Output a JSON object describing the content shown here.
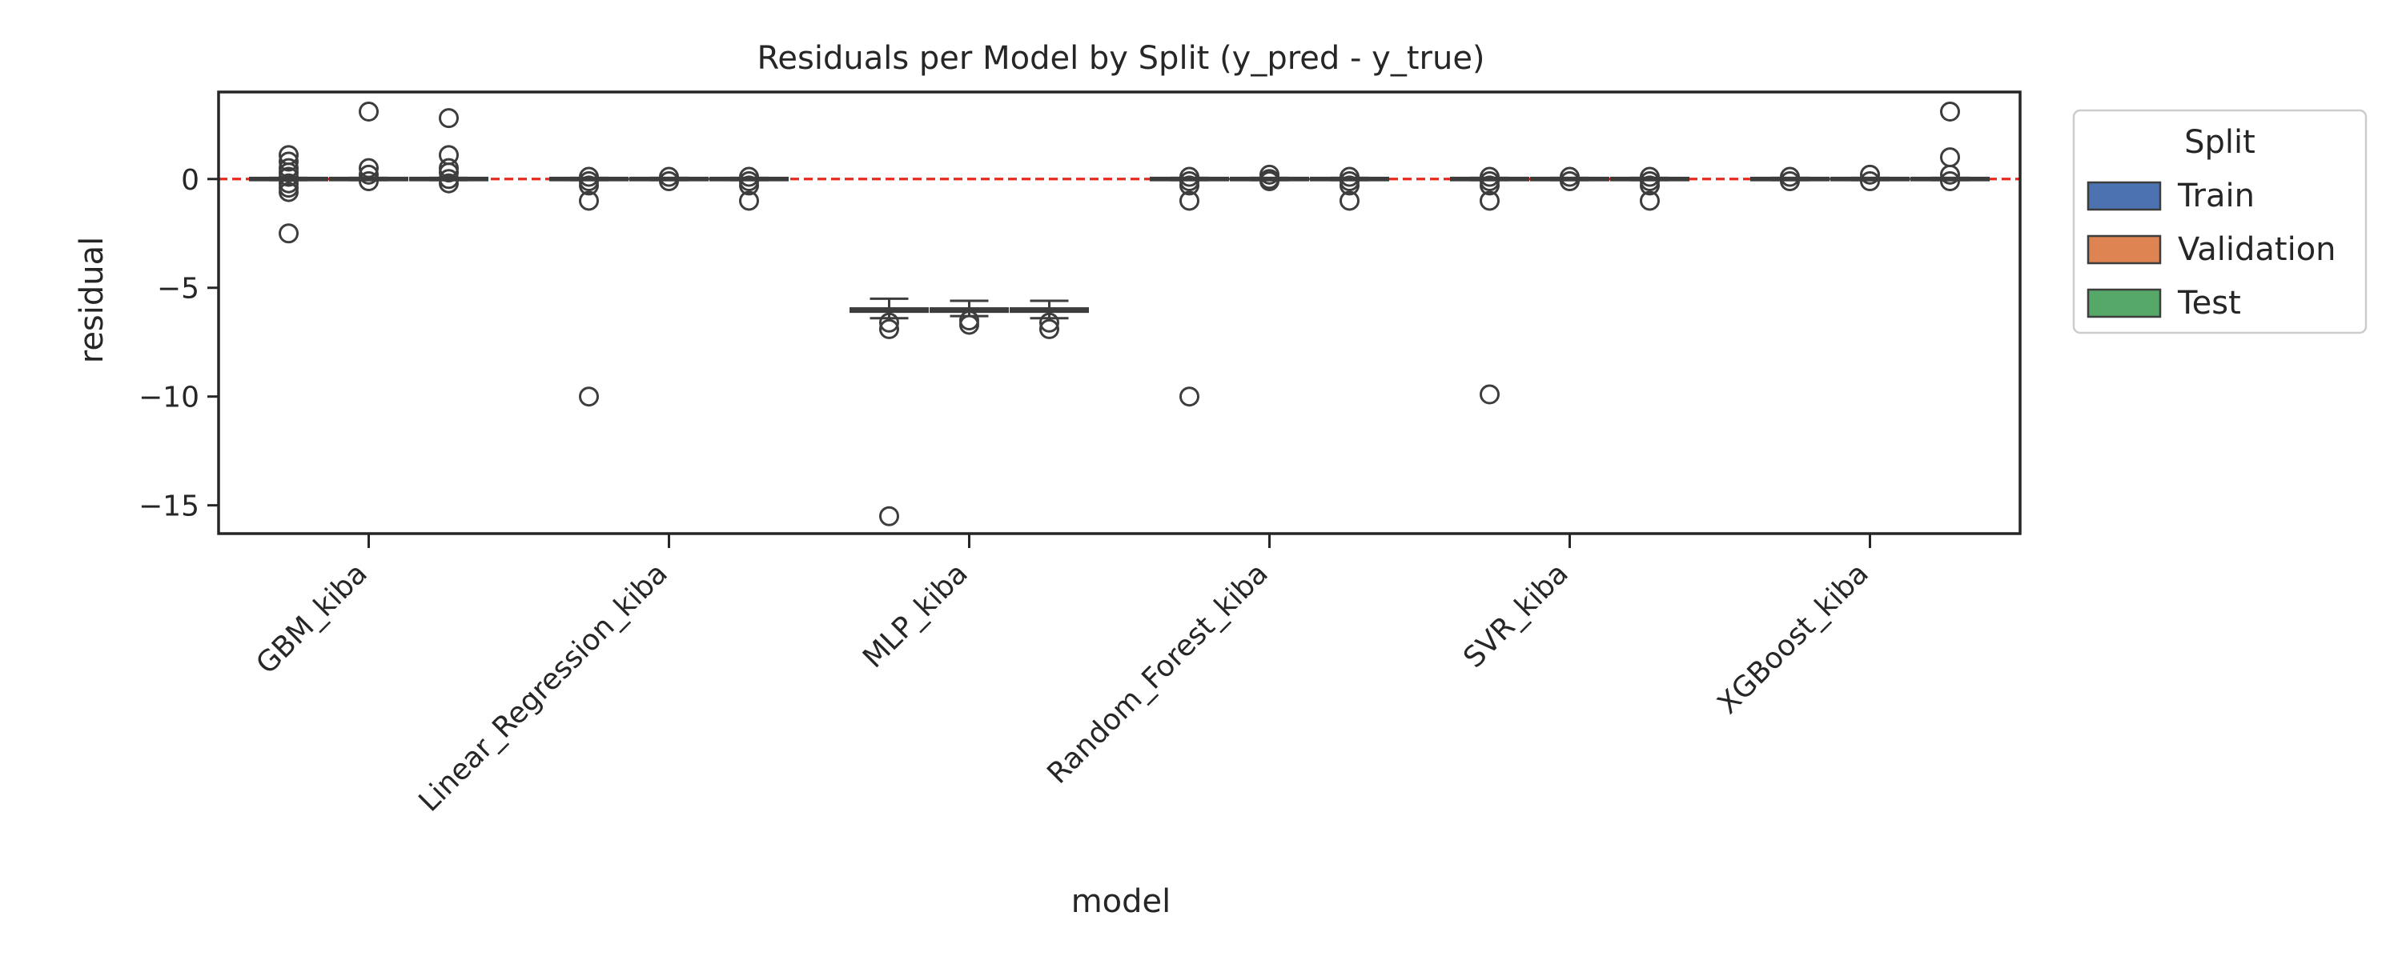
{
  "chart_data": {
    "type": "box",
    "title": "Residuals per Model by Split (y_pred - y_true)",
    "xlabel": "model",
    "ylabel": "residual",
    "categories": [
      "GBM_kiba",
      "Linear_Regression_kiba",
      "MLP_kiba",
      "Random_Forest_kiba",
      "SVR_kiba",
      "XGBoost_kiba"
    ],
    "ylim": [
      -16.3,
      4.0
    ],
    "yticks": [
      0,
      -5,
      -10,
      -15
    ],
    "ytick_labels": [
      "0",
      "−5",
      "−10",
      "−15"
    ],
    "reference_line": {
      "y": 0,
      "style": "dashed",
      "color": "#e8291d"
    },
    "grid": false,
    "legend": {
      "title": "Split",
      "placement": "outside-right",
      "entries": [
        {
          "label": "Train",
          "color": "#4c72b0"
        },
        {
          "label": "Validation",
          "color": "#dd8452"
        },
        {
          "label": "Test",
          "color": "#55a868"
        }
      ]
    },
    "series": [
      {
        "name": "Train",
        "boxes": [
          {
            "q1": -0.05,
            "median": 0.0,
            "q3": 0.05,
            "whisker_low": -0.05,
            "whisker_high": 0.05,
            "fliers": [
              1.1,
              0.8,
              0.5,
              0.3,
              0.1,
              -0.2,
              -0.4,
              -0.6,
              -2.5
            ]
          },
          {
            "q1": -0.05,
            "median": 0.0,
            "q3": 0.05,
            "whisker_low": -0.05,
            "whisker_high": 0.05,
            "fliers": [
              0.1,
              -0.1,
              -0.3,
              -1.0,
              -10.0
            ]
          },
          {
            "q1": -6.1,
            "median": -6.0,
            "q3": -5.95,
            "whisker_low": -6.4,
            "whisker_high": -5.5,
            "fliers": [
              -6.6,
              -6.9,
              -15.5
            ]
          },
          {
            "q1": -0.05,
            "median": 0.0,
            "q3": 0.05,
            "whisker_low": -0.05,
            "whisker_high": 0.05,
            "fliers": [
              0.1,
              -0.1,
              -0.3,
              -1.0,
              -10.0
            ]
          },
          {
            "q1": -0.05,
            "median": 0.0,
            "q3": 0.05,
            "whisker_low": -0.05,
            "whisker_high": 0.05,
            "fliers": [
              0.1,
              -0.1,
              -0.3,
              -1.0,
              -9.9
            ]
          },
          {
            "q1": -0.05,
            "median": 0.0,
            "q3": 0.05,
            "whisker_low": -0.05,
            "whisker_high": 0.05,
            "fliers": [
              0.1,
              -0.1
            ]
          }
        ]
      },
      {
        "name": "Validation",
        "boxes": [
          {
            "q1": -0.05,
            "median": 0.0,
            "q3": 0.05,
            "whisker_low": -0.05,
            "whisker_high": 0.05,
            "fliers": [
              3.1,
              0.5,
              0.2,
              -0.1
            ]
          },
          {
            "q1": -0.05,
            "median": 0.0,
            "q3": 0.05,
            "whisker_low": -0.05,
            "whisker_high": 0.05,
            "fliers": [
              0.1,
              -0.1
            ]
          },
          {
            "q1": -6.1,
            "median": -6.0,
            "q3": -5.95,
            "whisker_low": -6.3,
            "whisker_high": -5.6,
            "fliers": [
              -6.5,
              -6.7
            ]
          },
          {
            "q1": -0.05,
            "median": 0.0,
            "q3": 0.05,
            "whisker_low": -0.05,
            "whisker_high": 0.05,
            "fliers": [
              0.2,
              0.0,
              -0.1
            ]
          },
          {
            "q1": -0.05,
            "median": 0.0,
            "q3": 0.05,
            "whisker_low": -0.05,
            "whisker_high": 0.05,
            "fliers": [
              0.1,
              -0.1
            ]
          },
          {
            "q1": -0.05,
            "median": 0.0,
            "q3": 0.05,
            "whisker_low": -0.05,
            "whisker_high": 0.05,
            "fliers": [
              0.2,
              -0.1
            ]
          }
        ]
      },
      {
        "name": "Test",
        "boxes": [
          {
            "q1": -0.05,
            "median": 0.0,
            "q3": 0.05,
            "whisker_low": -0.05,
            "whisker_high": 0.05,
            "fliers": [
              2.8,
              1.1,
              0.5,
              0.3,
              0.0,
              -0.2
            ]
          },
          {
            "q1": -0.05,
            "median": 0.0,
            "q3": 0.05,
            "whisker_low": -0.05,
            "whisker_high": 0.05,
            "fliers": [
              0.1,
              -0.1,
              -0.3,
              -1.0
            ]
          },
          {
            "q1": -6.1,
            "median": -6.0,
            "q3": -5.95,
            "whisker_low": -6.4,
            "whisker_high": -5.6,
            "fliers": [
              -6.6,
              -6.9
            ]
          },
          {
            "q1": -0.05,
            "median": 0.0,
            "q3": 0.05,
            "whisker_low": -0.05,
            "whisker_high": 0.05,
            "fliers": [
              0.1,
              -0.1,
              -0.3,
              -1.0
            ]
          },
          {
            "q1": -0.05,
            "median": 0.0,
            "q3": 0.05,
            "whisker_low": -0.05,
            "whisker_high": 0.05,
            "fliers": [
              0.1,
              -0.1,
              -0.3,
              -1.0
            ]
          },
          {
            "q1": -0.05,
            "median": 0.0,
            "q3": 0.05,
            "whisker_low": -0.05,
            "whisker_high": 0.05,
            "fliers": [
              3.1,
              1.0,
              0.2,
              -0.1
            ]
          }
        ]
      }
    ]
  }
}
